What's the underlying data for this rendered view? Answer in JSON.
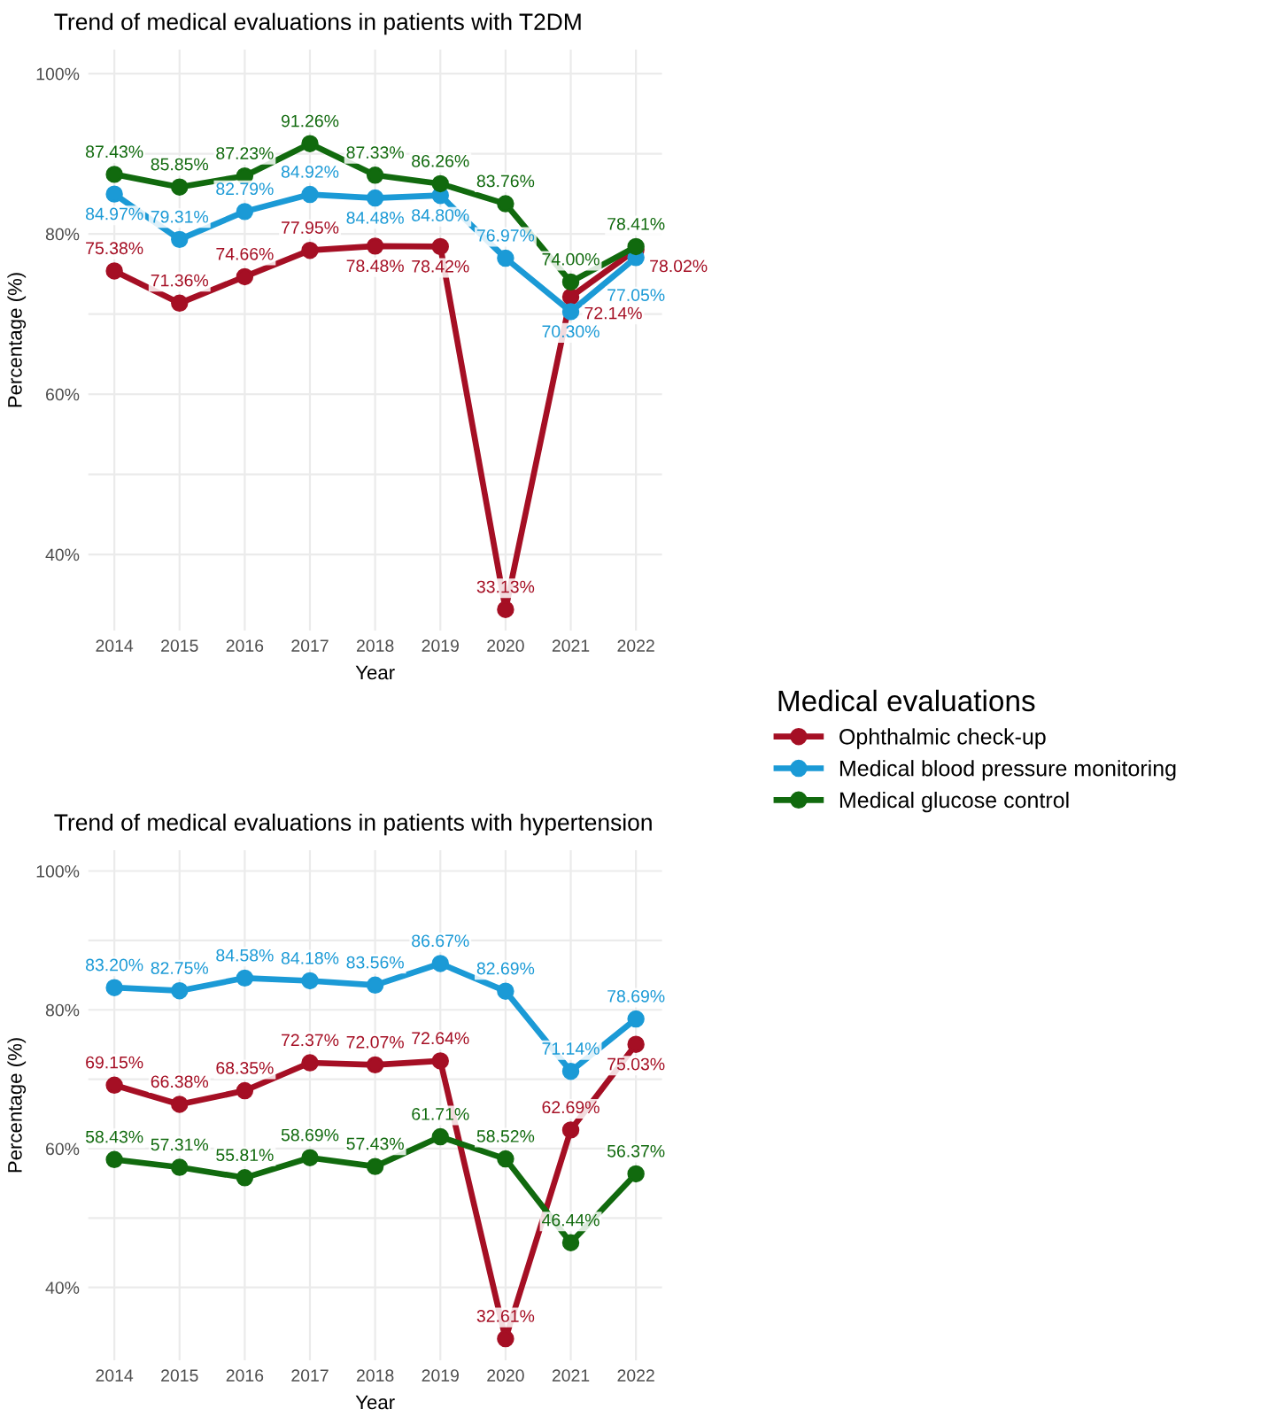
{
  "chart_data": [
    {
      "type": "line",
      "title": "Trend of medical evaluations in patients with T2DM",
      "xlabel": "Year",
      "ylabel": "Percentage (%)",
      "legend_title": "Medical evaluations",
      "legend": "right",
      "grid": true,
      "marker": "circle",
      "line_style": "solid",
      "x": [
        2014,
        2015,
        2016,
        2017,
        2018,
        2019,
        2020,
        2021,
        2022
      ],
      "xlim": [
        2013.6,
        2022.4
      ],
      "xticks": [
        2014,
        2015,
        2016,
        2017,
        2018,
        2019,
        2020,
        2021,
        2022
      ],
      "ylim": [
        30.5,
        103
      ],
      "yticks": [
        {
          "value": 40,
          "label": "40%"
        },
        {
          "value": 50,
          "label": null
        },
        {
          "value": 60,
          "label": "60%"
        },
        {
          "value": 70,
          "label": null
        },
        {
          "value": 80,
          "label": "80%"
        },
        {
          "value": 90,
          "label": null
        },
        {
          "value": 100,
          "label": "100%"
        }
      ],
      "series": [
        {
          "name": "Ophthalmic check-up",
          "color": "#a50f24",
          "values": [
            75.38,
            71.36,
            74.66,
            77.95,
            78.48,
            78.42,
            33.13,
            72.14,
            78.02
          ],
          "value_labels": [
            "75.38%",
            "71.36%",
            "74.66%",
            "77.95%",
            "78.48%",
            "78.42%",
            "33.13%",
            "72.14%",
            "78.02%"
          ]
        },
        {
          "name": "Medical blood pressure monitoring",
          "color": "#1b9ad6",
          "values": [
            84.97,
            79.31,
            82.79,
            84.92,
            84.48,
            84.8,
            76.97,
            70.3,
            77.05
          ],
          "value_labels": [
            "84.97%",
            "79.31%",
            "82.79%",
            "84.92%",
            "84.48%",
            "84.80%",
            "76.97%",
            "70.30%",
            "77.05%"
          ]
        },
        {
          "name": "Medical glucose control",
          "color": "#116a0e",
          "values": [
            87.43,
            85.85,
            87.23,
            91.26,
            87.33,
            86.26,
            83.76,
            74.0,
            78.41
          ],
          "value_labels": [
            "87.43%",
            "85.85%",
            "87.23%",
            "91.26%",
            "87.33%",
            "86.26%",
            "83.76%",
            "74.00%",
            "78.41%"
          ]
        }
      ]
    },
    {
      "type": "line",
      "title": "Trend of medical evaluations in patients with hypertension",
      "xlabel": "Year",
      "ylabel": "Percentage (%)",
      "grid": true,
      "marker": "circle",
      "line_style": "solid",
      "x": [
        2014,
        2015,
        2016,
        2017,
        2018,
        2019,
        2020,
        2021,
        2022
      ],
      "xlim": [
        2013.6,
        2022.4
      ],
      "xticks": [
        2014,
        2015,
        2016,
        2017,
        2018,
        2019,
        2020,
        2021,
        2022
      ],
      "ylim": [
        29.5,
        103
      ],
      "yticks": [
        {
          "value": 40,
          "label": "40%"
        },
        {
          "value": 50,
          "label": null
        },
        {
          "value": 60,
          "label": "60%"
        },
        {
          "value": 70,
          "label": null
        },
        {
          "value": 80,
          "label": "80%"
        },
        {
          "value": 90,
          "label": null
        },
        {
          "value": 100,
          "label": "100%"
        }
      ],
      "series": [
        {
          "name": "Ophthalmic check-up",
          "color": "#a50f24",
          "values": [
            69.15,
            66.38,
            68.35,
            72.37,
            72.07,
            72.64,
            32.61,
            62.69,
            75.03
          ],
          "value_labels": [
            "69.15%",
            "66.38%",
            "68.35%",
            "72.37%",
            "72.07%",
            "72.64%",
            "32.61%",
            "62.69%",
            "75.03%"
          ]
        },
        {
          "name": "Medical blood pressure monitoring",
          "color": "#1b9ad6",
          "values": [
            83.2,
            82.75,
            84.58,
            84.18,
            83.56,
            86.67,
            82.69,
            71.14,
            78.69
          ],
          "value_labels": [
            "83.20%",
            "82.75%",
            "84.58%",
            "84.18%",
            "83.56%",
            "86.67%",
            "82.69%",
            "71.14%",
            "78.69%"
          ]
        },
        {
          "name": "Medical glucose control",
          "color": "#116a0e",
          "values": [
            58.43,
            57.31,
            55.81,
            58.69,
            57.43,
            61.71,
            58.52,
            46.44,
            56.37
          ],
          "value_labels": [
            "58.43%",
            "57.31%",
            "55.81%",
            "58.69%",
            "57.43%",
            "61.71%",
            "58.52%",
            "46.44%",
            "56.37%"
          ]
        }
      ]
    }
  ]
}
